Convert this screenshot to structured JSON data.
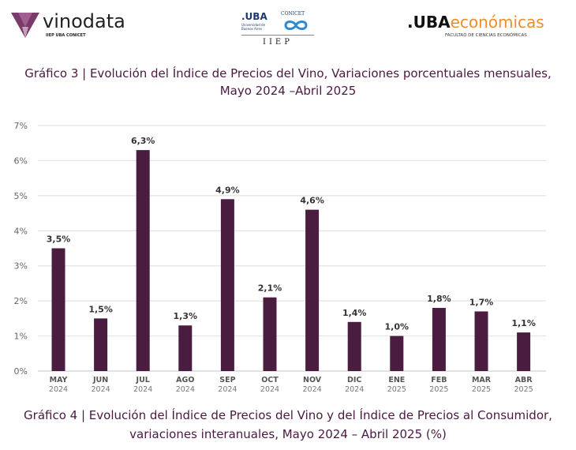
{
  "logos": {
    "vinodata": "vinodata",
    "vinodata_sub": "IIEP UBA CONICET",
    "uba": ".UBA",
    "uba_sub": "Universidad de Buenos Aires",
    "conicet": "CONICET",
    "iiep": "IIEP",
    "ubaeco_a": ".UBA",
    "ubaeco_b": "económicas",
    "ubaeco_sub": "FACULTAD DE CIENCIAS ECONÓMICAS"
  },
  "chart_title_1": "Gráfico 3 | Evolución del Índice de Precios del Vino, Variaciones porcentuales mensuales,",
  "chart_title_2": "Mayo 2024 –Abril 2025",
  "next_title_1": "Gráfico 4 | Evolución del Índice de Precios del Vino y del Índice de Precios al Consumidor,",
  "next_title_2": "variaciones interanuales, Mayo 2024 – Abril 2025 (%)",
  "chart_data": {
    "type": "bar",
    "categories": [
      [
        "MAY",
        "2024"
      ],
      [
        "JUN",
        "2024"
      ],
      [
        "JUL",
        "2024"
      ],
      [
        "AGO",
        "2024"
      ],
      [
        "SEP",
        "2024"
      ],
      [
        "OCT",
        "2024"
      ],
      [
        "NOV",
        "2024"
      ],
      [
        "DIC",
        "2024"
      ],
      [
        "ENE",
        "2025"
      ],
      [
        "FEB",
        "2025"
      ],
      [
        "MAR",
        "2025"
      ],
      [
        "ABR",
        "2025"
      ]
    ],
    "values": [
      3.5,
      1.5,
      6.3,
      1.3,
      4.9,
      2.1,
      4.6,
      1.4,
      1.0,
      1.8,
      1.7,
      1.1
    ],
    "data_labels": [
      "3,5%",
      "1,5%",
      "6,3%",
      "1,3%",
      "4,9%",
      "2,1%",
      "4,6%",
      "1,4%",
      "1,0%",
      "1,8%",
      "1,7%",
      "1,1%"
    ],
    "yticks": [
      "0%",
      "1%",
      "2%",
      "3%",
      "4%",
      "5%",
      "6%",
      "7%"
    ],
    "ylim": [
      0,
      7
    ],
    "grid": true,
    "bar_color": "#4a1c40"
  }
}
